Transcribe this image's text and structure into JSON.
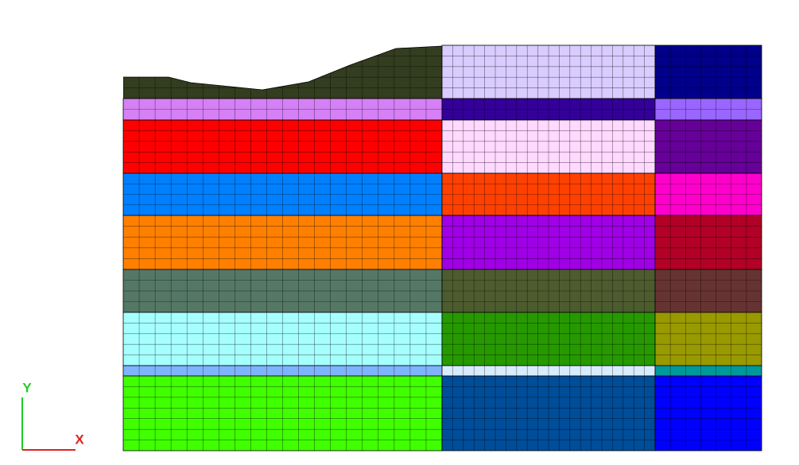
{
  "axes": {
    "x_label": "X",
    "y_label": "Y"
  }
}
